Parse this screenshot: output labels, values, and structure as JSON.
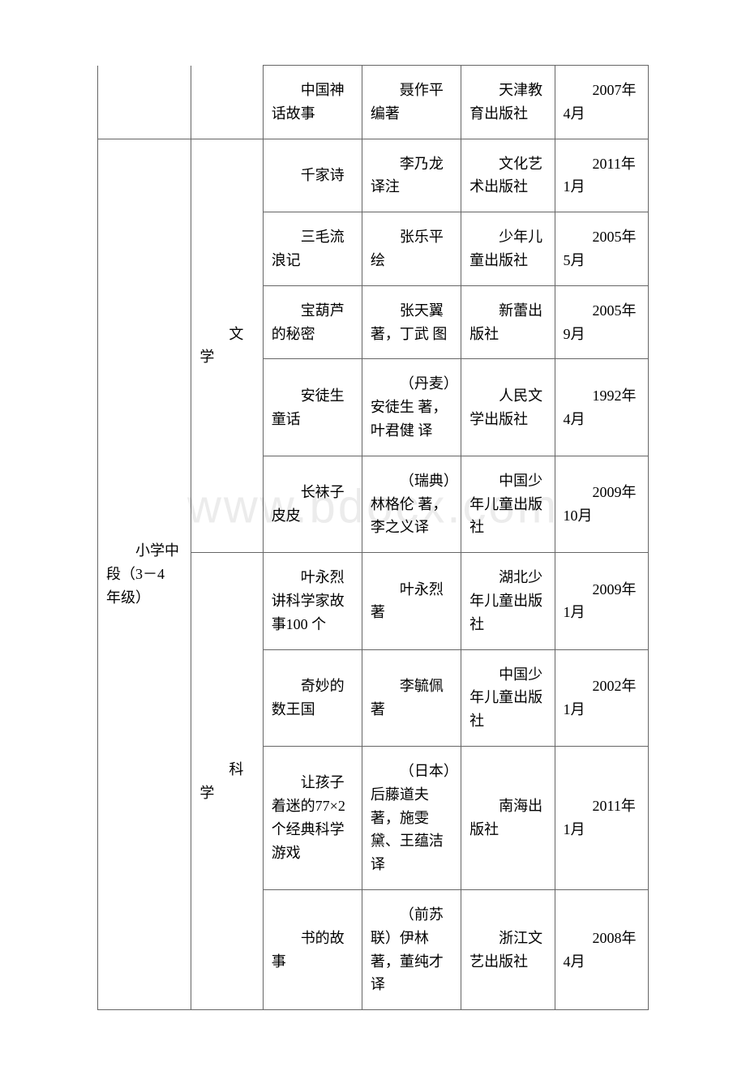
{
  "watermark": "www.bdocx.com",
  "rows": [
    {
      "grade": "",
      "category": "",
      "title": "中国神话故事",
      "author": "聂作平 编著",
      "publisher": "天津教育出版社",
      "date": "2007年4月"
    },
    {
      "grade": "小学中段（3－4 年级）",
      "category": "文学",
      "title": "千家诗",
      "author": "李乃龙 译注",
      "publisher": "文化艺术出版社",
      "date": "2011年1月"
    },
    {
      "title": "三毛流浪记",
      "author": "张乐平 绘",
      "publisher": "少年儿童出版社",
      "date": "2005年5月"
    },
    {
      "title": "宝葫芦的秘密",
      "author": "张天翼 著，丁武 图",
      "publisher": "新蕾出版社",
      "date": "2005年9月"
    },
    {
      "title": "安徒生童话",
      "author": "（丹麦）安徒生 著，叶君健 译",
      "publisher": "人民文学出版社",
      "date": "1992年4月"
    },
    {
      "title": "长袜子皮皮",
      "author": "（瑞典）林格伦 著，李之义译",
      "publisher": "中国少年儿童出版社",
      "date": "2009年10月"
    },
    {
      "category": "科学",
      "title": "叶永烈讲科学家故事100 个",
      "author": "叶永烈 著",
      "publisher": "湖北少年儿童出版社",
      "date": "2009年1月"
    },
    {
      "title": "奇妙的数王国",
      "author": "李毓佩 著",
      "publisher": "中国少年儿童出版社",
      "date": "2002年1月"
    },
    {
      "title": "让孩子着迷的77×2 个经典科学游戏",
      "author": "（日本）后藤道夫 著，施雯黛、王蕴洁 译",
      "publisher": "南海出版社",
      "date": "2011年1月"
    },
    {
      "title": "书的故事",
      "author": "（前苏联）伊林 著，董纯才 译",
      "publisher": "浙江文艺出版社",
      "date": "2008年4月"
    }
  ]
}
